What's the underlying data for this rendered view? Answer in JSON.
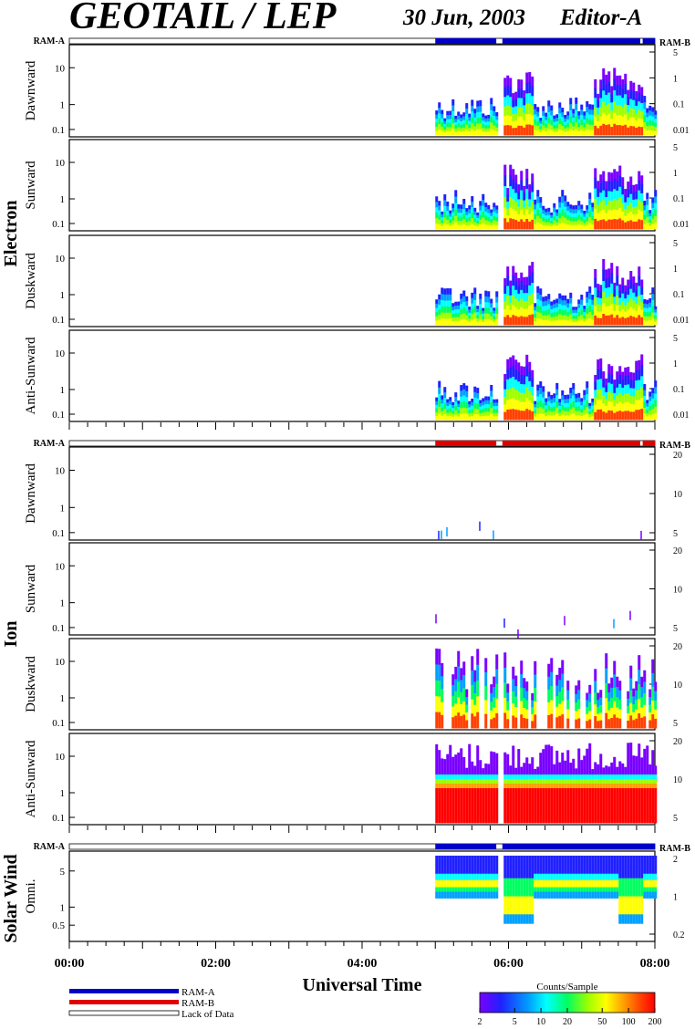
{
  "header": {
    "title": "GEOTAIL / LEP",
    "date": "30 Jun, 2003",
    "editor": "Editor-A"
  },
  "ram_labels": {
    "a": "RAM-A",
    "b": "RAM-B"
  },
  "groups": [
    {
      "label": "Electron"
    },
    {
      "label": "Ion"
    },
    {
      "label": "Solar Wind"
    }
  ],
  "colors": {
    "ram_a": "#0000c8",
    "ram_b": "#e00000",
    "lack": "#ffffff",
    "colorscale": [
      "#7a00ff",
      "#2020ff",
      "#00a0ff",
      "#00ffff",
      "#00ff60",
      "#a0ff00",
      "#ffff00",
      "#ffa000",
      "#ff4000",
      "#ff0000"
    ]
  },
  "chart_data": {
    "type": "heatmap",
    "x_range": [
      "00:00",
      "08:00"
    ],
    "x_ticks": [
      "00:00",
      "02:00",
      "04:00",
      "06:00",
      "08:00"
    ],
    "xlabel": "Universal Time",
    "ram_bars": [
      {
        "after_panel": -1,
        "segments": [
          {
            "start": "05:00",
            "end": "05:50",
            "mode": "RAM-A"
          },
          {
            "start": "05:55",
            "end": "07:48",
            "mode": "RAM-A"
          },
          {
            "start": "07:50",
            "end": "08:00",
            "mode": "RAM-A"
          }
        ]
      },
      {
        "after_panel": 3,
        "segments": [
          {
            "start": "05:00",
            "end": "05:50",
            "mode": "RAM-B"
          },
          {
            "start": "05:55",
            "end": "07:48",
            "mode": "RAM-B"
          },
          {
            "start": "07:50",
            "end": "08:00",
            "mode": "RAM-B"
          }
        ]
      },
      {
        "after_panel": 7,
        "segments": [
          {
            "start": "05:00",
            "end": "05:50",
            "mode": "RAM-A"
          },
          {
            "start": "05:55",
            "end": "08:00",
            "mode": "RAM-A"
          }
        ]
      }
    ],
    "panels": [
      {
        "group": "Electron",
        "label": "Dawnward",
        "left_ticks": [
          "0.1",
          "1",
          "10"
        ],
        "right_ticks": [
          "5",
          "1",
          "0.1",
          "0.01"
        ],
        "kind": "electron"
      },
      {
        "group": "Electron",
        "label": "Sunward",
        "left_ticks": [
          "0.1",
          "1",
          "10"
        ],
        "right_ticks": [
          "5",
          "1",
          "0.1",
          "0.01"
        ],
        "kind": "electron"
      },
      {
        "group": "Electron",
        "label": "Duskward",
        "left_ticks": [
          "0.1",
          "1",
          "10"
        ],
        "right_ticks": [
          "5",
          "1",
          "0.1",
          "0.01"
        ],
        "kind": "electron2"
      },
      {
        "group": "Electron",
        "label": "Anti-Sunward",
        "left_ticks": [
          "0.1",
          "1",
          "10"
        ],
        "right_ticks": [
          "5",
          "1",
          "0.1",
          "0.01"
        ],
        "kind": "electron"
      },
      {
        "group": "Ion",
        "label": "Dawnward",
        "left_ticks": [
          "0.1",
          "1",
          "10"
        ],
        "right_ticks": [
          "20",
          "10",
          "5"
        ],
        "kind": "ion_sparse"
      },
      {
        "group": "Ion",
        "label": "Sunward",
        "left_ticks": [
          "0.1",
          "1",
          "10"
        ],
        "right_ticks": [
          "20",
          "10",
          "5"
        ],
        "kind": "ion_sparse"
      },
      {
        "group": "Ion",
        "label": "Duskward",
        "left_ticks": [
          "0.1",
          "1",
          "10"
        ],
        "right_ticks": [
          "20",
          "10",
          "5"
        ],
        "kind": "ion_dusk"
      },
      {
        "group": "Ion",
        "label": "Anti-Sunward",
        "left_ticks": [
          "0.1",
          "1",
          "10"
        ],
        "right_ticks": [
          "20",
          "10",
          "5"
        ],
        "kind": "ion_anti"
      },
      {
        "group": "Solar Wind",
        "label": "Omni.",
        "left_ticks": [
          "0.5",
          "1",
          "5"
        ],
        "right_ticks": [
          "2",
          "1",
          "0.2"
        ],
        "kind": "solar"
      }
    ],
    "data_coverage": [
      {
        "start": "05:00",
        "end": "05:50"
      },
      {
        "start": "05:55",
        "end": "08:00"
      }
    ],
    "legend": [
      {
        "label": "RAM-A",
        "color": "#0000c8"
      },
      {
        "label": "RAM-B",
        "color": "#e00000"
      },
      {
        "label": "Lack of Data",
        "color": "#ffffff"
      }
    ],
    "colorbar": {
      "title": "Counts/Sample",
      "ticks": [
        "2",
        "5",
        "10",
        "20",
        "50",
        "100",
        "200"
      ],
      "scale": "log",
      "range": [
        2,
        200
      ]
    }
  }
}
